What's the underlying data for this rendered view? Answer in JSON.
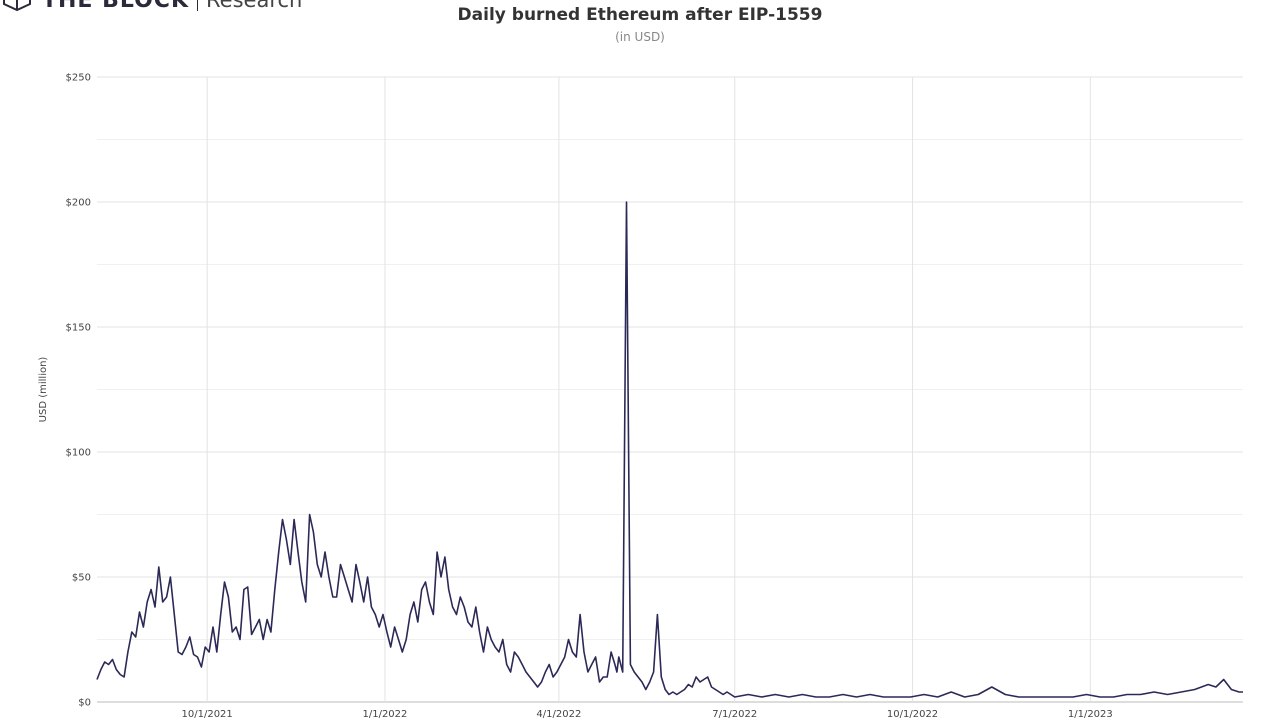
{
  "header": {
    "logo_text": "THE BLOCK",
    "logo_sub": "Research"
  },
  "chart_data": {
    "type": "line",
    "title": "Daily burned Ethereum after EIP-1559",
    "subtitle": "(in USD)",
    "ylabel": "USD (million)",
    "xlabel": "",
    "ylim": [
      0,
      250
    ],
    "xlim": [
      "2021-08-05",
      "2023-03-21"
    ],
    "y_ticks": [
      0,
      50,
      100,
      150,
      200,
      250
    ],
    "y_tick_labels": [
      "$0",
      "$50",
      "$100",
      "$150",
      "$200",
      "$250"
    ],
    "x_ticks": [
      "2021-10-01",
      "2022-01-01",
      "2022-04-01",
      "2022-07-01",
      "2022-10-01",
      "2023-01-01"
    ],
    "x_tick_labels": [
      "10/1/2021",
      "1/1/2022",
      "4/1/2022",
      "7/1/2022",
      "10/1/2022",
      "1/1/2023"
    ],
    "grid": true,
    "line_color": "#2b2a57",
    "series": [
      {
        "x": [
          "2021-08-05",
          "2021-08-07",
          "2021-08-09",
          "2021-08-11",
          "2021-08-13",
          "2021-08-15",
          "2021-08-17",
          "2021-08-19",
          "2021-08-21",
          "2021-08-23",
          "2021-08-25",
          "2021-08-27",
          "2021-08-29",
          "2021-08-31",
          "2021-09-02",
          "2021-09-04",
          "2021-09-06",
          "2021-09-08",
          "2021-09-10",
          "2021-09-12",
          "2021-09-14",
          "2021-09-16",
          "2021-09-18",
          "2021-09-20",
          "2021-09-22",
          "2021-09-24",
          "2021-09-26",
          "2021-09-28",
          "2021-09-30",
          "2021-10-02",
          "2021-10-04",
          "2021-10-06",
          "2021-10-08",
          "2021-10-10",
          "2021-10-12",
          "2021-10-14",
          "2021-10-16",
          "2021-10-18",
          "2021-10-20",
          "2021-10-22",
          "2021-10-24",
          "2021-10-26",
          "2021-10-28",
          "2021-10-30",
          "2021-11-01",
          "2021-11-03",
          "2021-11-05",
          "2021-11-07",
          "2021-11-09",
          "2021-11-11",
          "2021-11-13",
          "2021-11-15",
          "2021-11-17",
          "2021-11-19",
          "2021-11-21",
          "2021-11-23",
          "2021-11-25",
          "2021-11-27",
          "2021-11-29",
          "2021-12-01",
          "2021-12-03",
          "2021-12-05",
          "2021-12-07",
          "2021-12-09",
          "2021-12-11",
          "2021-12-13",
          "2021-12-15",
          "2021-12-17",
          "2021-12-19",
          "2021-12-21",
          "2021-12-23",
          "2021-12-25",
          "2021-12-27",
          "2021-12-29",
          "2021-12-31",
          "2022-01-02",
          "2022-01-04",
          "2022-01-06",
          "2022-01-08",
          "2022-01-10",
          "2022-01-12",
          "2022-01-14",
          "2022-01-16",
          "2022-01-18",
          "2022-01-20",
          "2022-01-22",
          "2022-01-24",
          "2022-01-26",
          "2022-01-28",
          "2022-01-30",
          "2022-02-01",
          "2022-02-03",
          "2022-02-05",
          "2022-02-07",
          "2022-02-09",
          "2022-02-11",
          "2022-02-13",
          "2022-02-15",
          "2022-02-17",
          "2022-02-19",
          "2022-02-21",
          "2022-02-23",
          "2022-02-25",
          "2022-02-27",
          "2022-03-01",
          "2022-03-03",
          "2022-03-05",
          "2022-03-07",
          "2022-03-09",
          "2022-03-11",
          "2022-03-13",
          "2022-03-15",
          "2022-03-17",
          "2022-03-19",
          "2022-03-21",
          "2022-03-23",
          "2022-03-25",
          "2022-03-27",
          "2022-03-29",
          "2022-03-31",
          "2022-04-02",
          "2022-04-04",
          "2022-04-06",
          "2022-04-08",
          "2022-04-10",
          "2022-04-12",
          "2022-04-14",
          "2022-04-16",
          "2022-04-18",
          "2022-04-20",
          "2022-04-22",
          "2022-04-24",
          "2022-04-26",
          "2022-04-28",
          "2022-04-30",
          "2022-05-01",
          "2022-05-02",
          "2022-05-04",
          "2022-05-06",
          "2022-05-08",
          "2022-05-10",
          "2022-05-12",
          "2022-05-14",
          "2022-05-16",
          "2022-05-18",
          "2022-05-20",
          "2022-05-22",
          "2022-05-24",
          "2022-05-26",
          "2022-05-28",
          "2022-05-30",
          "2022-06-01",
          "2022-06-03",
          "2022-06-05",
          "2022-06-07",
          "2022-06-09",
          "2022-06-11",
          "2022-06-13",
          "2022-06-15",
          "2022-06-17",
          "2022-06-19",
          "2022-06-21",
          "2022-06-23",
          "2022-06-25",
          "2022-06-27",
          "2022-06-29",
          "2022-07-01",
          "2022-07-08",
          "2022-07-15",
          "2022-07-22",
          "2022-07-29",
          "2022-08-05",
          "2022-08-12",
          "2022-08-19",
          "2022-08-26",
          "2022-09-02",
          "2022-09-09",
          "2022-09-16",
          "2022-09-23",
          "2022-09-30",
          "2022-10-07",
          "2022-10-14",
          "2022-10-21",
          "2022-10-28",
          "2022-11-04",
          "2022-11-11",
          "2022-11-18",
          "2022-11-25",
          "2022-12-02",
          "2022-12-09",
          "2022-12-16",
          "2022-12-23",
          "2022-12-30",
          "2023-01-06",
          "2023-01-13",
          "2023-01-20",
          "2023-01-27",
          "2023-02-03",
          "2023-02-10",
          "2023-02-17",
          "2023-02-24",
          "2023-03-03",
          "2023-03-07",
          "2023-03-11",
          "2023-03-15",
          "2023-03-19",
          "2023-03-21"
        ],
        "values": [
          9,
          13,
          16,
          15,
          17,
          13,
          11,
          10,
          20,
          28,
          26,
          36,
          30,
          40,
          45,
          38,
          54,
          40,
          42,
          50,
          35,
          20,
          19,
          22,
          26,
          19,
          18,
          14,
          22,
          20,
          30,
          20,
          35,
          48,
          42,
          28,
          30,
          25,
          45,
          46,
          27,
          30,
          33,
          25,
          33,
          28,
          45,
          60,
          73,
          65,
          55,
          73,
          60,
          48,
          40,
          75,
          68,
          55,
          50,
          60,
          50,
          42,
          42,
          55,
          50,
          45,
          40,
          55,
          48,
          40,
          50,
          38,
          35,
          30,
          35,
          28,
          22,
          30,
          25,
          20,
          25,
          35,
          40,
          32,
          45,
          48,
          40,
          35,
          60,
          50,
          58,
          45,
          38,
          35,
          42,
          38,
          32,
          30,
          38,
          28,
          20,
          30,
          25,
          22,
          20,
          25,
          15,
          12,
          20,
          18,
          15,
          12,
          10,
          8,
          6,
          8,
          12,
          15,
          10,
          12,
          15,
          18,
          25,
          20,
          18,
          35,
          20,
          12,
          15,
          18,
          8,
          10,
          10,
          20,
          15,
          12,
          18,
          12,
          200,
          15,
          12,
          10,
          8,
          5,
          8,
          12,
          35,
          10,
          5,
          3,
          4,
          3,
          4,
          5,
          7,
          6,
          10,
          8,
          9,
          10,
          6,
          5,
          4,
          3,
          4,
          3,
          2,
          3,
          2,
          3,
          2,
          3,
          2,
          2,
          3,
          2,
          3,
          2,
          2,
          2,
          3,
          2,
          4,
          2,
          3,
          6,
          3,
          2,
          2,
          2,
          2,
          2,
          3,
          2,
          2,
          3,
          3,
          4,
          3,
          4,
          5,
          7,
          6,
          9,
          5,
          4,
          4
        ]
      }
    ]
  }
}
